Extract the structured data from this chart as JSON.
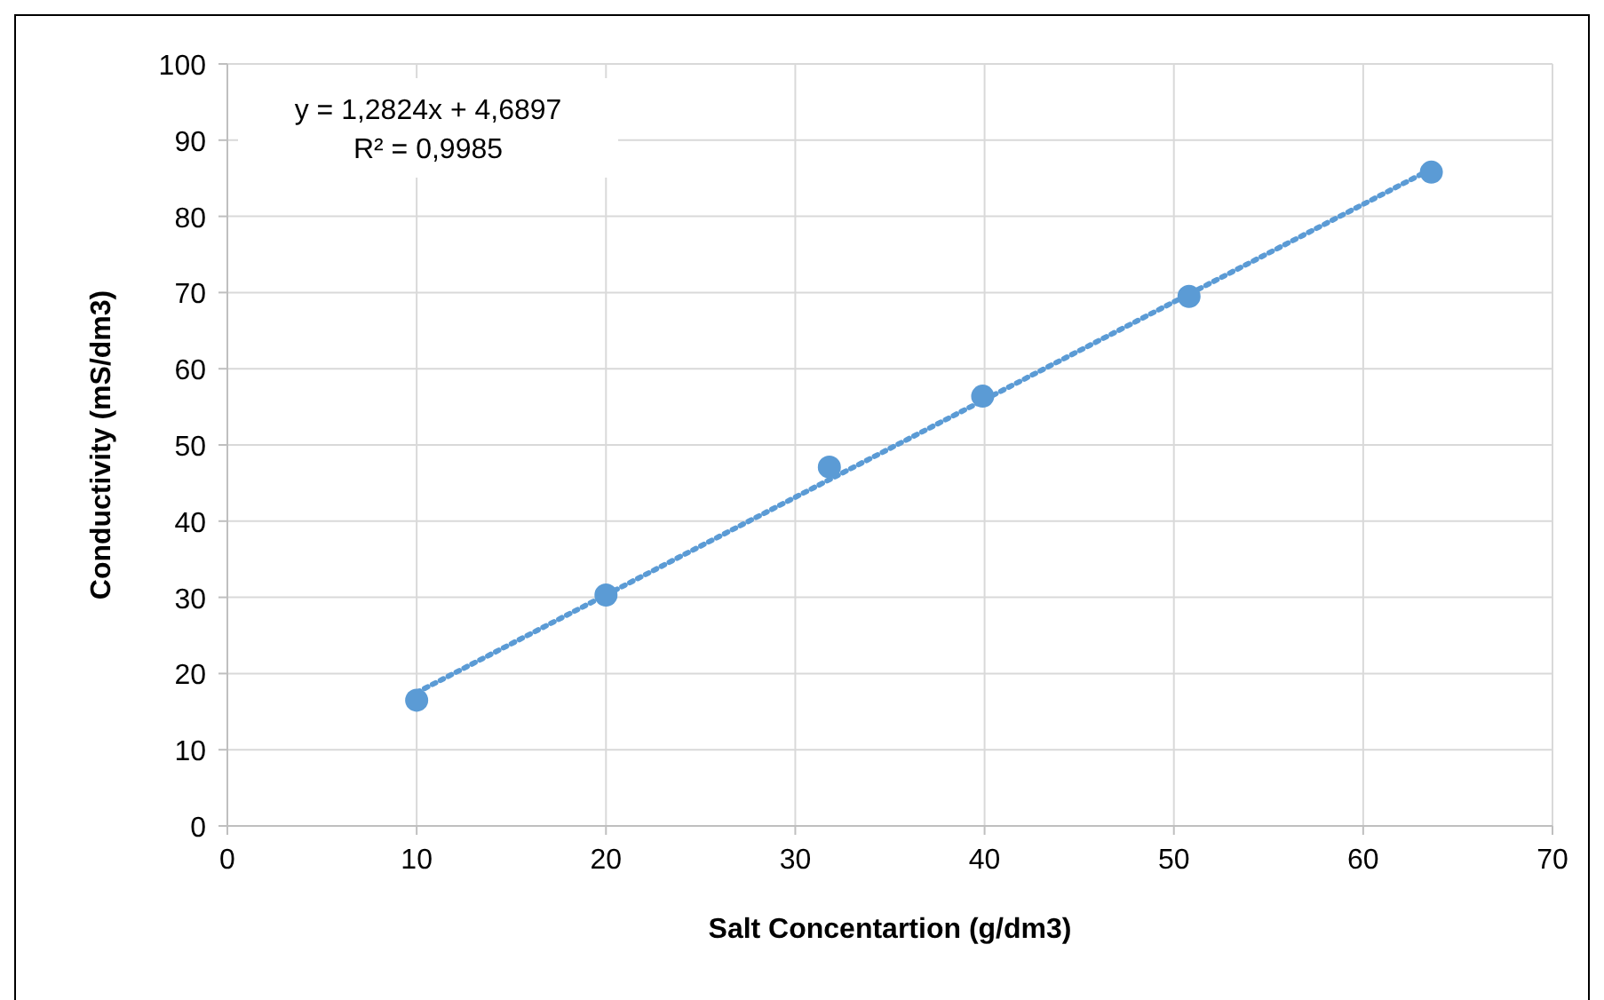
{
  "chart_data": {
    "type": "scatter",
    "xlabel": "Salt Concentartion (g/dm3)",
    "ylabel": "Conductivity (mS/dm3)",
    "xlim": [
      0,
      70
    ],
    "xticks": [
      0,
      10,
      20,
      30,
      40,
      50,
      60,
      70
    ],
    "ylim": [
      0,
      100
    ],
    "yticks": [
      0,
      10,
      20,
      30,
      40,
      50,
      60,
      70,
      80,
      90,
      100
    ],
    "grid": true,
    "marker": "circle",
    "series": [
      {
        "type": "scatter",
        "color": "#5b9bd5",
        "x": [
          10,
          20,
          31.8,
          39.9,
          50.8,
          63.6
        ],
        "values": [
          16.5,
          30.3,
          47.1,
          56.4,
          69.5,
          85.8
        ]
      },
      {
        "type": "line",
        "color": "#5b9bd5",
        "marker": "none",
        "line_style": "dotted",
        "x": [
          10,
          63.6
        ],
        "values": [
          17.5,
          86.2
        ]
      }
    ],
    "annotations": [
      "y = 1,2824x + 4,6897",
      "R² = 0,9985"
    ]
  }
}
